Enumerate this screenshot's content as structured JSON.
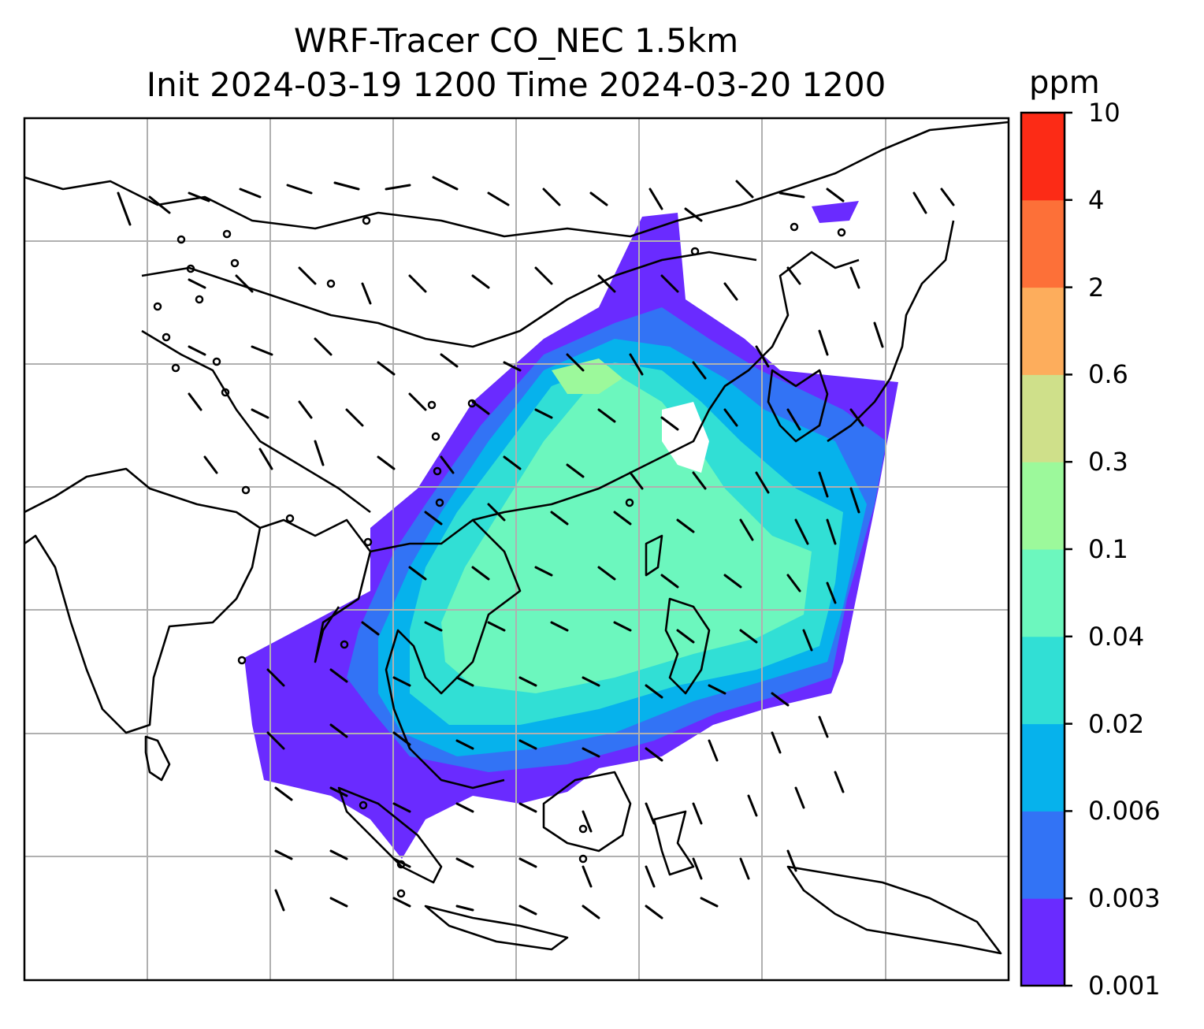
{
  "title": {
    "line1": "WRF-Tracer CO_NEC 1.5km",
    "line2": "Init 2024-03-19 1200 Time 2024-03-20 1200"
  },
  "colorbar": {
    "unit": "ppm",
    "tick_labels": [
      "0.001",
      "0.003",
      "0.006",
      "0.02",
      "0.04",
      "0.1",
      "0.3",
      "0.6",
      "2",
      "4",
      "10"
    ],
    "colors": [
      "#6a2bff",
      "#3273f5",
      "#06b2ec",
      "#31dfd5",
      "#6cf7be",
      "#9cf99b",
      "#cfe08a",
      "#fdad5c",
      "#fd7038",
      "#fc2b16"
    ]
  },
  "map": {
    "field": "CO_NEC tracer concentration",
    "gridlines": true,
    "layers": [
      "tracer-shading",
      "coastlines",
      "country-borders",
      "wind-barbs"
    ],
    "outside_shading_color": "#ffffff",
    "coastline_color": "#000000",
    "gridline_color": "#b0b0b0"
  }
}
